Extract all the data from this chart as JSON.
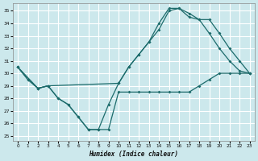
{
  "xlabel": "Humidex (Indice chaleur)",
  "bg_color": "#cce8ec",
  "grid_color": "#ffffff",
  "line_color": "#1c6b6b",
  "xlim": [
    -0.5,
    23.5
  ],
  "ylim": [
    24.6,
    35.6
  ],
  "xtick_vals": [
    0,
    1,
    2,
    3,
    4,
    5,
    6,
    7,
    8,
    9,
    10,
    11,
    12,
    13,
    14,
    15,
    16,
    17,
    18,
    19,
    20,
    21,
    22,
    23
  ],
  "ytick_vals": [
    25,
    26,
    27,
    28,
    29,
    30,
    31,
    32,
    33,
    34,
    35
  ],
  "line1_x": [
    0,
    1,
    2,
    3,
    4,
    5,
    6,
    7,
    8,
    9,
    10,
    11,
    12,
    13,
    14,
    15,
    16,
    17,
    18,
    19,
    20,
    21,
    22,
    23
  ],
  "line1_y": [
    30.5,
    29.5,
    28.8,
    29.0,
    28.0,
    27.5,
    26.5,
    25.5,
    25.5,
    25.5,
    28.5,
    28.5,
    28.5,
    28.5,
    28.5,
    28.5,
    28.5,
    28.5,
    29.0,
    29.5,
    30.0,
    30.0,
    30.0,
    30.0
  ],
  "line2_x": [
    0,
    1,
    2,
    3,
    4,
    5,
    6,
    7,
    8,
    9,
    10,
    11,
    12,
    13,
    14,
    15,
    16,
    17,
    18,
    19,
    20,
    21,
    22,
    23
  ],
  "line2_y": [
    30.5,
    29.5,
    28.8,
    29.0,
    28.0,
    27.5,
    26.5,
    25.5,
    25.5,
    27.5,
    29.2,
    30.5,
    31.5,
    32.5,
    34.0,
    35.2,
    35.2,
    34.5,
    34.3,
    33.2,
    32.0,
    31.0,
    30.2,
    30.0
  ],
  "line3_x": [
    0,
    2,
    3,
    10,
    11,
    12,
    13,
    14,
    15,
    16,
    17,
    18,
    19,
    20,
    21,
    22,
    23
  ],
  "line3_y": [
    30.5,
    28.8,
    29.0,
    29.2,
    30.5,
    31.5,
    32.5,
    33.5,
    35.0,
    35.2,
    34.8,
    34.3,
    34.3,
    33.2,
    32.0,
    31.0,
    30.0
  ]
}
